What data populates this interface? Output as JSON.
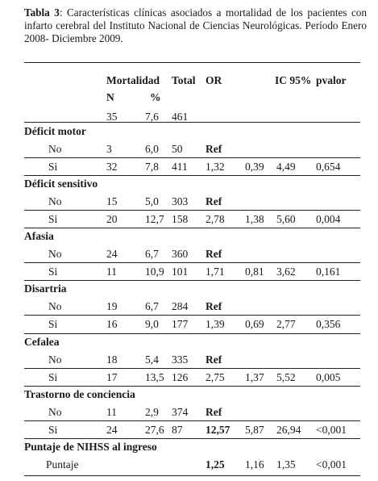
{
  "caption": {
    "label": "Tabla 3",
    "text": ": Características clínicas asociados a mortalidad de los pacientes con infarto cerebral del Instituto Nacional de Ciencias Neurológicas. Período Enero 2008- Diciembre 2009."
  },
  "headers": {
    "mortalidad": "Mortalidad",
    "total": "Total",
    "or": "OR",
    "ic": "IC 95%",
    "pvalor": "pvalor",
    "n": "N",
    "pct": "%"
  },
  "totals": {
    "n": "35",
    "pct": "7,6",
    "total": "461"
  },
  "sections": [
    {
      "title": "Déficit motor",
      "rows": [
        {
          "label": "No",
          "n": "3",
          "pct": "6,0",
          "total": "50",
          "or": "Ref",
          "ic_low": "",
          "ic_high": "",
          "p": ""
        },
        {
          "label": "Si",
          "n": "32",
          "pct": "7,8",
          "total": "411",
          "or": "1,32",
          "ic_low": "0,39",
          "ic_high": "4,49",
          "p": "0,654"
        }
      ]
    },
    {
      "title": "Déficit sensitivo",
      "rows": [
        {
          "label": "No",
          "n": "15",
          "pct": "5,0",
          "total": "303",
          "or": "Ref",
          "ic_low": "",
          "ic_high": "",
          "p": ""
        },
        {
          "label": "Si",
          "n": "20",
          "pct": "12,7",
          "total": "158",
          "or": "2,78",
          "ic_low": "1,38",
          "ic_high": "5,60",
          "p": "0,004"
        }
      ]
    },
    {
      "title": "Afasia",
      "rows": [
        {
          "label": "No",
          "n": "24",
          "pct": "6,7",
          "total": "360",
          "or": "Ref",
          "ic_low": "",
          "ic_high": "",
          "p": ""
        },
        {
          "label": "Si",
          "n": "11",
          "pct": "10,9",
          "total": "101",
          "or": "1,71",
          "ic_low": "0,81",
          "ic_high": "3,62",
          "p": "0,161"
        }
      ]
    },
    {
      "title": "Disartria",
      "rows": [
        {
          "label": "No",
          "n": "19",
          "pct": "6,7",
          "total": "284",
          "or": "Ref",
          "ic_low": "",
          "ic_high": "",
          "p": ""
        },
        {
          "label": "Si",
          "n": "16",
          "pct": "9,0",
          "total": "177",
          "or": "1,39",
          "ic_low": "0,69",
          "ic_high": "2,77",
          "p": "0,356"
        }
      ]
    },
    {
      "title": "Cefalea",
      "rows": [
        {
          "label": "No",
          "n": "18",
          "pct": "5,4",
          "total": "335",
          "or": "Ref",
          "ic_low": "",
          "ic_high": "",
          "p": ""
        },
        {
          "label": "Si",
          "n": "17",
          "pct": "13,5",
          "total": "126",
          "or": "2,75",
          "ic_low": "1,37",
          "ic_high": "5,52",
          "p": "0,005"
        }
      ]
    },
    {
      "title": "Trastorno de conciencia",
      "rows": [
        {
          "label": "No",
          "n": "11",
          "pct": "2,9",
          "total": "374",
          "or": "Ref",
          "ic_low": "",
          "ic_high": "",
          "p": ""
        },
        {
          "label": "Si",
          "n": "24",
          "pct": "27,6",
          "total": "87",
          "or": "12,57",
          "ic_low": "5,87",
          "ic_high": "26,94",
          "p": "<0,001",
          "or_bold": true
        }
      ]
    },
    {
      "title": "Puntaje de NIHSS al ingreso",
      "rows": [
        {
          "label": "Puntaje",
          "n": "",
          "pct": "",
          "total": "",
          "or": "1,25",
          "ic_low": "1,16",
          "ic_high": "1,35",
          "p": "<0,001",
          "or_bold": true
        }
      ]
    }
  ]
}
